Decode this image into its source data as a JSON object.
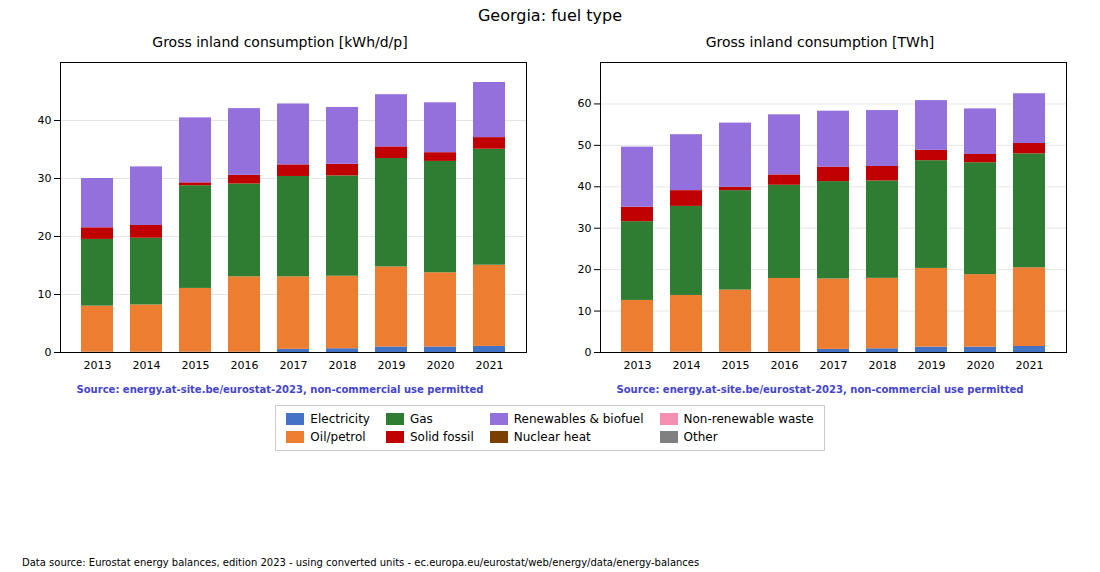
{
  "title": "Georgia: fuel type",
  "legend": "bottom",
  "annotations": [
    {
      "text": "Data source: Eurostat energy balances, edition 2023 - using converted units - ec.europa.eu/eurostat/web/energy/data/energy-balances",
      "color": "#000000"
    }
  ],
  "chart_data": [
    {
      "type": "bar",
      "stacked": true,
      "grid": true,
      "title": "Gross inland consumption [kWh/d/p]",
      "annotations": [
        {
          "text": "Source: energy.at-site.be/eurostat-2023, non-commercial use permitted",
          "color": "#4444cc"
        }
      ],
      "categories": [
        "2013",
        "2014",
        "2015",
        "2016",
        "2017",
        "2018",
        "2019",
        "2020",
        "2021"
      ],
      "ylim": [
        0,
        50
      ],
      "yticks": [
        0,
        10,
        20,
        30,
        40
      ],
      "series": [
        {
          "name": "Electricity",
          "color": "#4472c4",
          "values": [
            0.05,
            0.05,
            0.05,
            0.05,
            0.55,
            0.65,
            0.95,
            0.95,
            1.05
          ]
        },
        {
          "name": "Oil/petrol",
          "color": "#ed7d31",
          "values": [
            7.95,
            8.15,
            11.0,
            13.0,
            12.5,
            12.5,
            13.8,
            12.8,
            14.0
          ]
        },
        {
          "name": "Gas",
          "color": "#2e7d32",
          "values": [
            11.5,
            11.5,
            17.7,
            16.0,
            17.3,
            17.3,
            18.7,
            19.2,
            20.0
          ]
        },
        {
          "name": "Solid fossil",
          "color": "#c00000",
          "values": [
            2.0,
            2.2,
            0.5,
            1.5,
            2.0,
            2.0,
            2.0,
            1.5,
            2.0
          ]
        },
        {
          "name": "Renewables & biofuel",
          "color": "#9370db",
          "values": [
            8.5,
            10.1,
            11.2,
            11.5,
            10.5,
            9.8,
            9.0,
            8.6,
            9.5
          ]
        },
        {
          "name": "Nuclear heat",
          "color": "#7b3f00",
          "values": [
            0.0,
            0.0,
            0.0,
            0.0,
            0.0,
            0.0,
            0.0,
            0.0,
            0.0
          ]
        },
        {
          "name": "Non-renewable waste",
          "color": "#f48fb1",
          "values": [
            0.0,
            0.0,
            0.0,
            0.0,
            0.0,
            0.0,
            0.0,
            0.0,
            0.0
          ]
        },
        {
          "name": "Other",
          "color": "#808080",
          "values": [
            0.0,
            0.0,
            0.0,
            0.0,
            0.0,
            0.0,
            0.0,
            0.0,
            0.0
          ]
        }
      ]
    },
    {
      "type": "bar",
      "stacked": true,
      "grid": true,
      "title": "Gross inland consumption [TWh]",
      "annotations": [
        {
          "text": "Source: energy.at-site.be/eurostat-2023, non-commercial use permitted",
          "color": "#4444cc"
        }
      ],
      "categories": [
        "2013",
        "2014",
        "2015",
        "2016",
        "2017",
        "2018",
        "2019",
        "2020",
        "2021"
      ],
      "ylim": [
        0,
        70
      ],
      "yticks": [
        0,
        10,
        20,
        30,
        40,
        50,
        60
      ],
      "series": [
        {
          "name": "Electricity",
          "color": "#4472c4",
          "values": [
            0.07,
            0.07,
            0.07,
            0.07,
            0.75,
            0.9,
            1.3,
            1.3,
            1.45
          ]
        },
        {
          "name": "Oil/petrol",
          "color": "#ed7d31",
          "values": [
            12.5,
            13.7,
            15.0,
            17.8,
            17.0,
            17.0,
            19.0,
            17.5,
            19.0
          ]
        },
        {
          "name": "Gas",
          "color": "#2e7d32",
          "values": [
            19.0,
            21.5,
            24.0,
            22.5,
            23.5,
            23.5,
            26.0,
            27.0,
            27.5
          ]
        },
        {
          "name": "Solid fossil",
          "color": "#c00000",
          "values": [
            3.5,
            3.8,
            0.8,
            2.5,
            3.5,
            3.5,
            2.5,
            2.0,
            2.5
          ]
        },
        {
          "name": "Renewables & biofuel",
          "color": "#9370db",
          "values": [
            14.5,
            13.5,
            15.5,
            14.5,
            13.5,
            13.5,
            12.0,
            11.0,
            12.0
          ]
        },
        {
          "name": "Nuclear heat",
          "color": "#7b3f00",
          "values": [
            0.0,
            0.0,
            0.0,
            0.0,
            0.0,
            0.0,
            0.0,
            0.0,
            0.0
          ]
        },
        {
          "name": "Non-renewable waste",
          "color": "#f48fb1",
          "values": [
            0.0,
            0.0,
            0.0,
            0.0,
            0.0,
            0.0,
            0.0,
            0.0,
            0.0
          ]
        },
        {
          "name": "Other",
          "color": "#808080",
          "values": [
            0.0,
            0.0,
            0.0,
            0.0,
            0.0,
            0.0,
            0.0,
            0.0,
            0.0
          ]
        }
      ]
    }
  ]
}
